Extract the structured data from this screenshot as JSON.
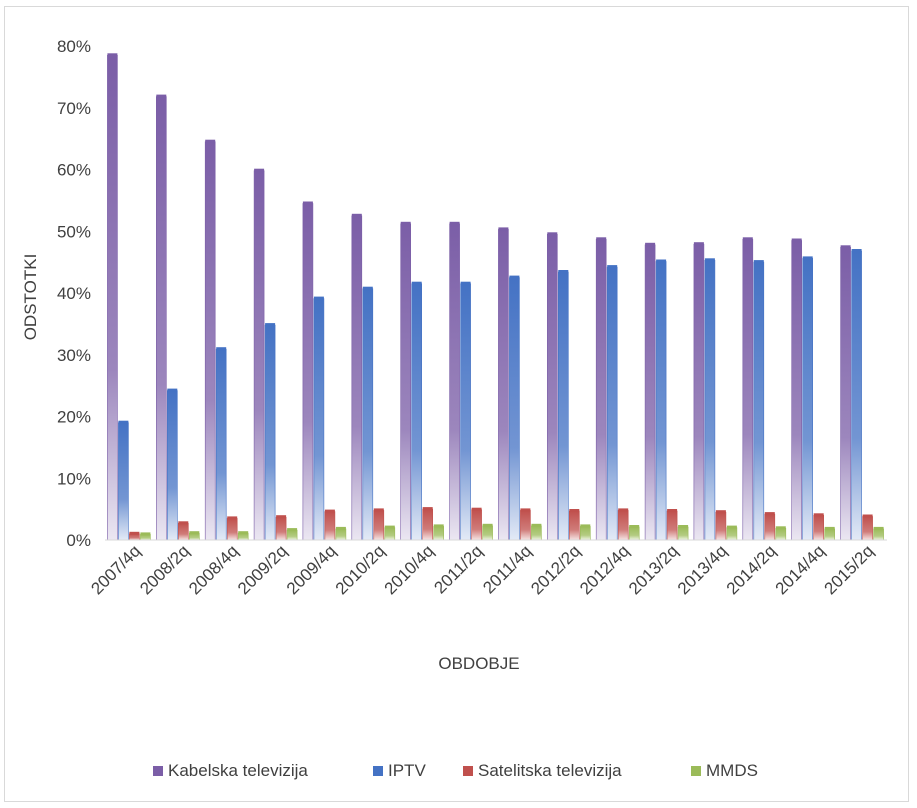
{
  "chart_data": {
    "type": "bar",
    "title": "",
    "xlabel": "OBDOBJE",
    "ylabel": "ODSTOTKI",
    "ylim": [
      0,
      80
    ],
    "y_ticks": [
      "0%",
      "10%",
      "20%",
      "30%",
      "40%",
      "50%",
      "60%",
      "70%",
      "80%"
    ],
    "grid": false,
    "legend_position": "bottom",
    "categories": [
      "2007/4q",
      "2008/2q",
      "2008/4q",
      "2009/2q",
      "2009/4q",
      "2010/2q",
      "2010/4q",
      "2011/2q",
      "2011/4q",
      "2012/2q",
      "2012/4q",
      "2013/2q",
      "2013/4q",
      "2014/2q",
      "2014/4q",
      "2015/2q"
    ],
    "series": [
      {
        "name": "Kabelska televizija",
        "color": "#7B5EA7",
        "values": [
          78.5,
          71.8,
          64.5,
          59.8,
          54.5,
          52.5,
          51.2,
          51.2,
          50.3,
          49.5,
          48.7,
          47.8,
          47.9,
          48.7,
          48.5,
          47.4
        ]
      },
      {
        "name": "IPTV",
        "color": "#4472C4",
        "values": [
          19.0,
          24.2,
          30.9,
          34.8,
          39.1,
          40.7,
          41.5,
          41.5,
          42.5,
          43.4,
          44.2,
          45.1,
          45.3,
          45.0,
          45.6,
          46.8
        ]
      },
      {
        "name": "Satelitska televizija",
        "color": "#C0504D",
        "values": [
          1.0,
          2.7,
          3.5,
          3.7,
          4.6,
          4.8,
          5.0,
          4.9,
          4.8,
          4.7,
          4.8,
          4.7,
          4.5,
          4.2,
          4.0,
          3.8
        ]
      },
      {
        "name": "MMDS",
        "color": "#9BBB59",
        "values": [
          0.9,
          1.1,
          1.1,
          1.6,
          1.8,
          2.0,
          2.2,
          2.3,
          2.3,
          2.2,
          2.1,
          2.1,
          2.0,
          1.9,
          1.8,
          1.8
        ]
      }
    ]
  }
}
